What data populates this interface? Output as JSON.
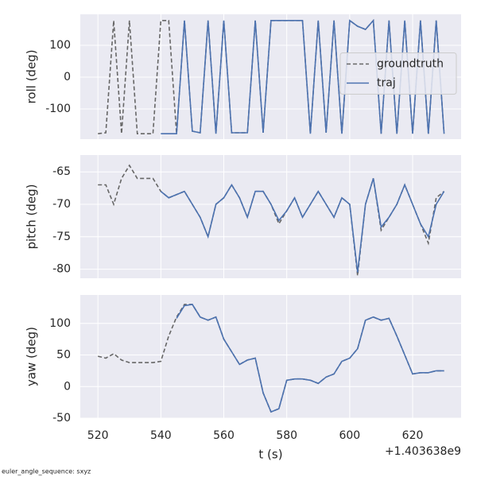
{
  "chart_data": [
    {
      "type": "line",
      "ylabel": "roll (deg)",
      "x": [
        520,
        522.5,
        525,
        527.5,
        530,
        532.5,
        535,
        537.5,
        540,
        542.5,
        545,
        547.5,
        550,
        552.5,
        555,
        557.5,
        560,
        562.5,
        565,
        567.5,
        570,
        572.5,
        575,
        577.5,
        580,
        582.5,
        585,
        587.5,
        590,
        592.5,
        595,
        597.5,
        600,
        602.5,
        605,
        607.5,
        610,
        612.5,
        615,
        617.5,
        620,
        622.5,
        625,
        627.5,
        630
      ],
      "series": [
        {
          "name": "groundtruth",
          "color": "#666666",
          "style": "dashed",
          "values": [
            -178,
            -175,
            178,
            -178,
            178,
            -178,
            -178,
            -178,
            178,
            178,
            -178,
            178,
            -170,
            -175,
            178,
            -178,
            178,
            -175,
            -175,
            -175,
            178,
            -175,
            178,
            178,
            178,
            178,
            178,
            -178,
            178,
            -175,
            178,
            -178,
            178,
            160,
            150,
            178,
            -178,
            178,
            -178,
            178,
            -178,
            178,
            -178,
            178,
            -178
          ]
        },
        {
          "name": "traj",
          "color": "#4c72b0",
          "style": "solid",
          "values": [
            null,
            null,
            null,
            null,
            null,
            null,
            null,
            null,
            -178,
            -178,
            -178,
            178,
            -170,
            -175,
            178,
            -178,
            178,
            -175,
            -175,
            -175,
            178,
            -175,
            178,
            178,
            178,
            178,
            178,
            -178,
            178,
            -175,
            178,
            -178,
            178,
            160,
            150,
            178,
            -178,
            178,
            -178,
            178,
            -178,
            178,
            -178,
            178,
            -178
          ]
        }
      ],
      "xlim": [
        514.4,
        635.4
      ],
      "xticks": [
        520,
        540,
        560,
        580,
        600,
        620
      ],
      "ylim": [
        -195,
        197.5
      ],
      "yticks": [
        -100,
        0,
        100
      ],
      "grid": true,
      "legend": "center right"
    },
    {
      "type": "line",
      "ylabel": "pitch (deg)",
      "x": [
        520,
        522.5,
        525,
        527.5,
        530,
        532.5,
        535,
        537.5,
        540,
        542.5,
        545,
        547.5,
        550,
        552.5,
        555,
        557.5,
        560,
        562.5,
        565,
        567.5,
        570,
        572.5,
        575,
        577.5,
        580,
        582.5,
        585,
        587.5,
        590,
        592.5,
        595,
        597.5,
        600,
        602.5,
        605,
        607.5,
        610,
        612.5,
        615,
        617.5,
        620,
        622.5,
        625,
        627.5,
        630
      ],
      "series": [
        {
          "name": "groundtruth",
          "color": "#666666",
          "style": "dashed",
          "values": [
            -67,
            -67,
            -70,
            -66,
            -64,
            -66,
            -66,
            -66,
            -68,
            -69,
            -68.5,
            -68,
            -70,
            -72,
            -75,
            -70,
            -69,
            -67,
            -69,
            -72,
            -68,
            -68,
            -70,
            -73,
            -71,
            -69,
            -72,
            -70,
            -68,
            -70,
            -72,
            -69,
            -70,
            -81,
            -70,
            -66,
            -74,
            -72,
            -70,
            -67,
            -70,
            -73,
            -76,
            -69,
            -68
          ]
        },
        {
          "name": "traj",
          "color": "#4c72b0",
          "style": "solid",
          "values": [
            null,
            null,
            null,
            null,
            null,
            null,
            null,
            null,
            -68,
            -69,
            -68.5,
            -68,
            -70,
            -72,
            -75,
            -70,
            -69,
            -67,
            -69,
            -72,
            -68,
            -68,
            -70,
            -72.5,
            -71,
            -69,
            -72,
            -70,
            -68,
            -70,
            -72,
            -69,
            -70,
            -80.5,
            -70,
            -66,
            -73.5,
            -72,
            -70,
            -67,
            -70,
            -73,
            -75,
            -70,
            -68
          ]
        }
      ],
      "xlim": [
        514.4,
        635.4
      ],
      "xticks": [
        520,
        540,
        560,
        580,
        600,
        620
      ],
      "ylim": [
        -81.4,
        -62.4
      ],
      "yticks": [
        -80,
        -75,
        -70,
        -65
      ],
      "grid": true
    },
    {
      "type": "line",
      "ylabel": "yaw (deg)",
      "xlabel": "t (s)",
      "x_offset_label": "+1.403638e9",
      "x": [
        520,
        522.5,
        525,
        527.5,
        530,
        532.5,
        535,
        537.5,
        540,
        542.5,
        545,
        547.5,
        550,
        552.5,
        555,
        557.5,
        560,
        562.5,
        565,
        567.5,
        570,
        572.5,
        575,
        577.5,
        580,
        582.5,
        585,
        587.5,
        590,
        592.5,
        595,
        597.5,
        600,
        602.5,
        605,
        607.5,
        610,
        612.5,
        615,
        617.5,
        620,
        622.5,
        625,
        627.5,
        630
      ],
      "series": [
        {
          "name": "groundtruth",
          "color": "#666666",
          "style": "dashed",
          "values": [
            48,
            45,
            52,
            42,
            38,
            38,
            38,
            38,
            40,
            80,
            110,
            130,
            130,
            110,
            105,
            110,
            75,
            55,
            35,
            42,
            45,
            -10,
            -40,
            -35,
            10,
            12,
            12,
            10,
            5,
            15,
            20,
            40,
            45,
            60,
            105,
            110,
            105,
            108,
            80,
            50,
            20,
            22,
            22,
            25,
            25
          ]
        },
        {
          "name": "traj",
          "color": "#4c72b0",
          "style": "solid",
          "values": [
            null,
            null,
            null,
            null,
            null,
            null,
            null,
            null,
            null,
            null,
            108,
            128,
            130,
            110,
            105,
            110,
            75,
            55,
            35,
            42,
            45,
            -10,
            -40,
            -35,
            10,
            12,
            12,
            10,
            5,
            15,
            20,
            40,
            45,
            60,
            105,
            110,
            105,
            108,
            80,
            50,
            20,
            22,
            22,
            25,
            25
          ]
        }
      ],
      "xlim": [
        514.4,
        635.4
      ],
      "xticks": [
        520,
        540,
        560,
        580,
        600,
        620
      ],
      "ylim": [
        -50,
        145
      ],
      "yticks": [
        -50,
        0,
        50,
        100
      ],
      "grid": true
    }
  ],
  "footer": "euler_angle_sequence: sxyz"
}
